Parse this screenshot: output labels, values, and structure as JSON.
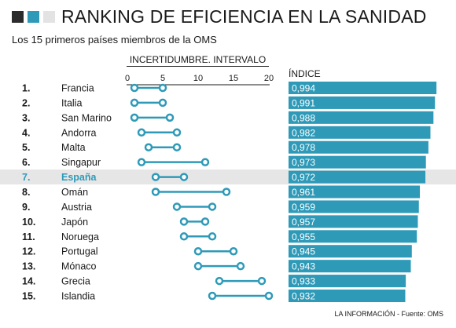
{
  "title": "RANKING DE EFICIENCIA EN LA SANIDAD",
  "subtitle": "Los 15 primeros países miembros de la OMS",
  "interval_header": "INCERTIDUMBRE. INTERVALO",
  "index_header": "ÍNDICE",
  "source": "LA INFORMACIÓN - Fuente: OMS",
  "colors": {
    "accent": "#2e9ab8",
    "dark": "#2b2b2b",
    "light_gray": "#e3e3e3",
    "highlight_row": "#e6e6e6",
    "text": "#1a1a1a"
  },
  "chart_data": [
    {
      "type": "dumbbell",
      "title": "INCERTIDUMBRE. INTERVALO",
      "xlim": [
        0,
        20
      ],
      "xticks": [
        0,
        5,
        10,
        15,
        20
      ],
      "grid": false,
      "categories": [
        "1.",
        "2.",
        "3.",
        "4.",
        "5.",
        "6.",
        "7.",
        "8.",
        "9.",
        "10.",
        "11.",
        "12.",
        "13.",
        "14.",
        "15."
      ],
      "countries": [
        "Francia",
        "Italia",
        "San Marino",
        "Andorra",
        "Malta",
        "Singapur",
        "España",
        "Omán",
        "Austria",
        "Japón",
        "Noruega",
        "Portugal",
        "Mónaco",
        "Grecia",
        "Islandia"
      ],
      "low": [
        1,
        1,
        1,
        2,
        3,
        2,
        4,
        4,
        7,
        8,
        8,
        10,
        10,
        13,
        12
      ],
      "high": [
        5,
        5,
        6,
        7,
        7,
        11,
        8,
        14,
        12,
        11,
        12,
        15,
        16,
        19,
        20
      ],
      "highlighted": "España"
    },
    {
      "type": "bar",
      "title": "ÍNDICE",
      "orientation": "horizontal",
      "categories": [
        "Francia",
        "Italia",
        "San Marino",
        "Andorra",
        "Malta",
        "Singapur",
        "España",
        "Omán",
        "Austria",
        "Japón",
        "Noruega",
        "Portugal",
        "Mónaco",
        "Grecia",
        "Islandia"
      ],
      "values": [
        0.994,
        0.991,
        0.988,
        0.982,
        0.978,
        0.973,
        0.972,
        0.961,
        0.959,
        0.957,
        0.955,
        0.945,
        0.943,
        0.933,
        0.932
      ],
      "labels": [
        "0,994",
        "0,991",
        "0,988",
        "0,982",
        "0,978",
        "0,973",
        "0,972",
        "0,961",
        "0,959",
        "0,957",
        "0,955",
        "0,945",
        "0,943",
        "0,933",
        "0,932"
      ],
      "xlim": [
        0.7,
        1.0
      ]
    }
  ]
}
